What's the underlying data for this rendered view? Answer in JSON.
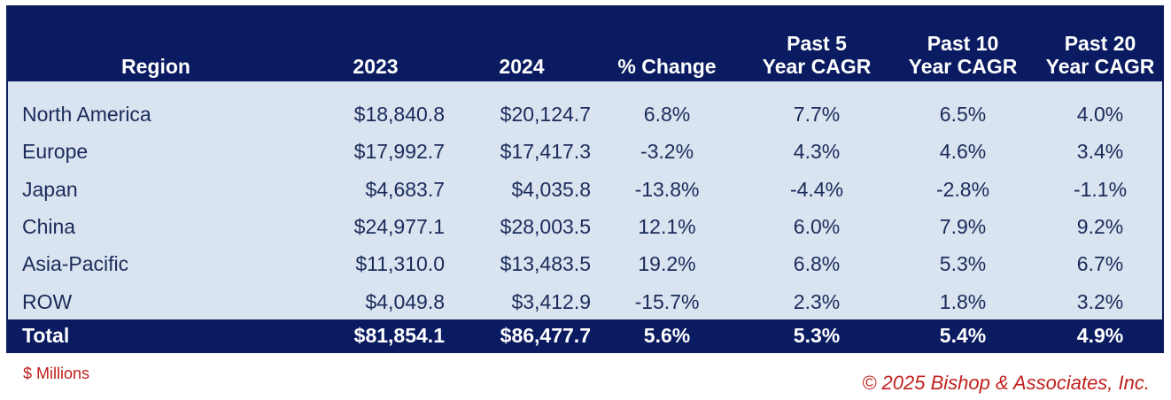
{
  "chart_data": {
    "type": "table",
    "columns": [
      "Region",
      "2023",
      "2024",
      "% Change",
      "Past 5 Year CAGR",
      "Past 10 Year CAGR",
      "Past 20 Year CAGR"
    ],
    "header": [
      [
        "",
        "Region"
      ],
      [
        "",
        "2023"
      ],
      [
        "",
        "2024"
      ],
      [
        "",
        "% Change"
      ],
      [
        "Past 5",
        "Year CAGR"
      ],
      [
        "Past 10",
        "Year CAGR"
      ],
      [
        "Past 20",
        "Year CAGR"
      ]
    ],
    "rows": [
      [
        "North America",
        "$18,840.8",
        "$20,124.7",
        "6.8%",
        "7.7%",
        "6.5%",
        "4.0%"
      ],
      [
        "Europe",
        "$17,992.7",
        "$17,417.3",
        "-3.2%",
        "4.3%",
        "4.6%",
        "3.4%"
      ],
      [
        "Japan",
        "$4,683.7",
        "$4,035.8",
        "-13.8%",
        "-4.4%",
        "-2.8%",
        "-1.1%"
      ],
      [
        "China",
        "$24,977.1",
        "$28,003.5",
        "12.1%",
        "6.0%",
        "7.9%",
        "9.2%"
      ],
      [
        "Asia-Pacific",
        "$11,310.0",
        "$13,483.5",
        "19.2%",
        "6.8%",
        "5.3%",
        "6.7%"
      ],
      [
        "ROW",
        "$4,049.8",
        "$3,412.9",
        "-15.7%",
        "2.3%",
        "1.8%",
        "3.2%"
      ]
    ],
    "total": [
      "Total",
      "$81,854.1",
      "$86,477.7",
      "5.6%",
      "5.3%",
      "5.4%",
      "4.9%"
    ],
    "footnote": "$ Millions",
    "copyright": "© 2025 Bishop & Associates, Inc."
  },
  "colors": {
    "header_bg": "#0a1b61",
    "body_bg": "#dae3f0",
    "body_text": "#1a2b5a",
    "header_text": "#ffffff",
    "note_text": "#c0201d"
  }
}
